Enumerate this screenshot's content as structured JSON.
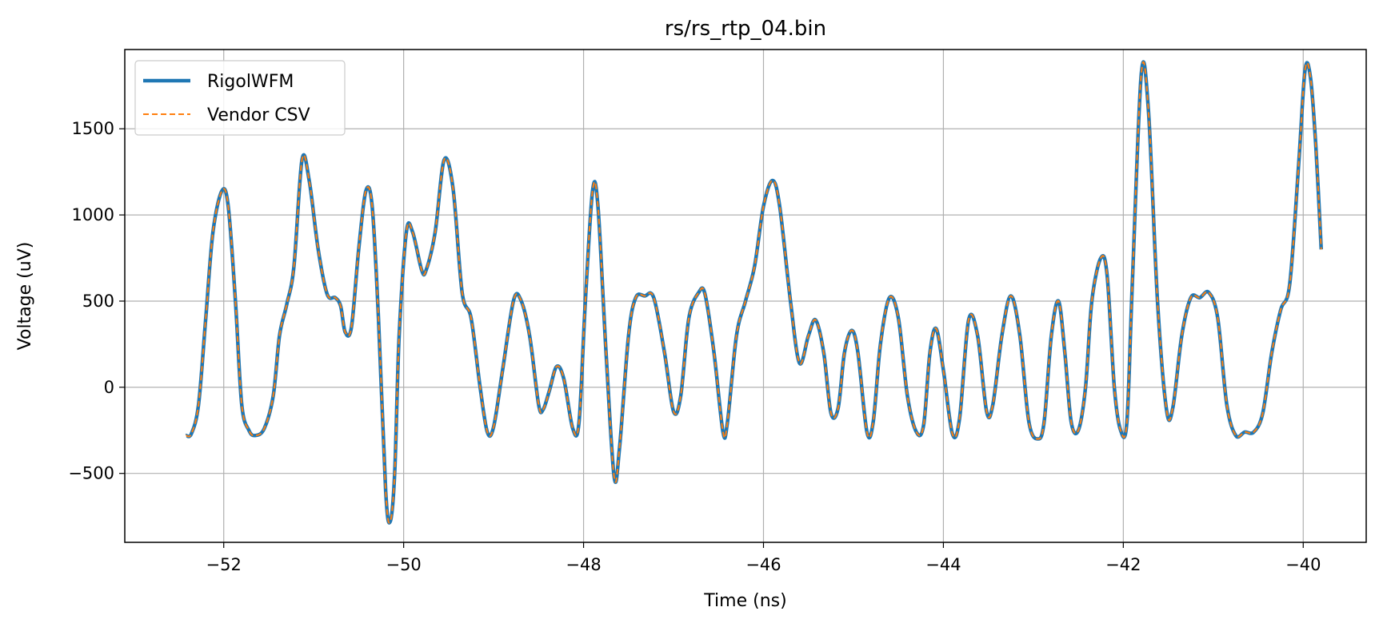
{
  "chart_data": {
    "type": "line",
    "title": "rs/rs_rtp_04.bin",
    "xlabel": "Time (ns)",
    "ylabel": "Voltage (uV)",
    "xlim": [
      -53.1,
      -39.3
    ],
    "ylim": [
      -900,
      1960
    ],
    "xticks": [
      -52,
      -50,
      -48,
      -46,
      -44,
      -42,
      -40
    ],
    "yticks": [
      -500,
      0,
      500,
      1000,
      1500
    ],
    "grid": true,
    "legend_position": "top-left",
    "series": [
      {
        "name": "RigolWFM",
        "color": "#1f77b4",
        "style": "solid"
      },
      {
        "name": "Vendor CSV",
        "color": "#ff7f0e",
        "style": "dashed"
      }
    ],
    "points": [
      [
        -52.42,
        -280
      ],
      [
        -52.36,
        -270
      ],
      [
        -52.28,
        -100
      ],
      [
        -52.2,
        400
      ],
      [
        -52.12,
        900
      ],
      [
        -52.02,
        1140
      ],
      [
        -51.95,
        1050
      ],
      [
        -51.87,
        500
      ],
      [
        -51.8,
        -100
      ],
      [
        -51.72,
        -250
      ],
      [
        -51.65,
        -280
      ],
      [
        -51.55,
        -240
      ],
      [
        -51.45,
        -50
      ],
      [
        -51.38,
        300
      ],
      [
        -51.3,
        480
      ],
      [
        -51.22,
        700
      ],
      [
        -51.13,
        1320
      ],
      [
        -51.05,
        1200
      ],
      [
        -50.95,
        800
      ],
      [
        -50.85,
        540
      ],
      [
        -50.76,
        520
      ],
      [
        -50.7,
        470
      ],
      [
        -50.65,
        320
      ],
      [
        -50.58,
        350
      ],
      [
        -50.5,
        800
      ],
      [
        -50.42,
        1140
      ],
      [
        -50.35,
        1050
      ],
      [
        -50.28,
        400
      ],
      [
        -50.2,
        -600
      ],
      [
        -50.15,
        -780
      ],
      [
        -50.1,
        -500
      ],
      [
        -50.05,
        300
      ],
      [
        -49.97,
        900
      ],
      [
        -49.9,
        900
      ],
      [
        -49.8,
        680
      ],
      [
        -49.75,
        680
      ],
      [
        -49.65,
        900
      ],
      [
        -49.55,
        1320
      ],
      [
        -49.45,
        1150
      ],
      [
        -49.35,
        550
      ],
      [
        -49.25,
        400
      ],
      [
        -49.15,
        0
      ],
      [
        -49.07,
        -260
      ],
      [
        -49.0,
        -230
      ],
      [
        -48.9,
        100
      ],
      [
        -48.78,
        500
      ],
      [
        -48.7,
        510
      ],
      [
        -48.6,
        300
      ],
      [
        -48.5,
        -100
      ],
      [
        -48.45,
        -130
      ],
      [
        -48.38,
        -20
      ],
      [
        -48.3,
        120
      ],
      [
        -48.22,
        50
      ],
      [
        -48.12,
        -240
      ],
      [
        -48.05,
        -200
      ],
      [
        -47.98,
        500
      ],
      [
        -47.9,
        1140
      ],
      [
        -47.84,
        1050
      ],
      [
        -47.75,
        200
      ],
      [
        -47.66,
        -520
      ],
      [
        -47.6,
        -350
      ],
      [
        -47.5,
        300
      ],
      [
        -47.42,
        520
      ],
      [
        -47.32,
        530
      ],
      [
        -47.22,
        520
      ],
      [
        -47.1,
        200
      ],
      [
        -47.0,
        -140
      ],
      [
        -46.92,
        -50
      ],
      [
        -46.83,
        400
      ],
      [
        -46.72,
        550
      ],
      [
        -46.65,
        540
      ],
      [
        -46.55,
        200
      ],
      [
        -46.45,
        -260
      ],
      [
        -46.4,
        -200
      ],
      [
        -46.3,
        300
      ],
      [
        -46.2,
        500
      ],
      [
        -46.1,
        700
      ],
      [
        -46.0,
        1050
      ],
      [
        -45.9,
        1200
      ],
      [
        -45.82,
        1050
      ],
      [
        -45.7,
        500
      ],
      [
        -45.6,
        140
      ],
      [
        -45.5,
        300
      ],
      [
        -45.42,
        390
      ],
      [
        -45.33,
        200
      ],
      [
        -45.25,
        -150
      ],
      [
        -45.17,
        -120
      ],
      [
        -45.1,
        200
      ],
      [
        -45.02,
        330
      ],
      [
        -44.95,
        200
      ],
      [
        -44.85,
        -260
      ],
      [
        -44.78,
        -200
      ],
      [
        -44.7,
        250
      ],
      [
        -44.6,
        520
      ],
      [
        -44.5,
        400
      ],
      [
        -44.4,
        -50
      ],
      [
        -44.3,
        -260
      ],
      [
        -44.22,
        -220
      ],
      [
        -44.15,
        200
      ],
      [
        -44.08,
        340
      ],
      [
        -44.0,
        100
      ],
      [
        -43.9,
        -270
      ],
      [
        -43.82,
        -180
      ],
      [
        -43.72,
        390
      ],
      [
        -43.62,
        300
      ],
      [
        -43.52,
        -140
      ],
      [
        -43.45,
        -100
      ],
      [
        -43.35,
        300
      ],
      [
        -43.25,
        530
      ],
      [
        -43.15,
        300
      ],
      [
        -43.05,
        -200
      ],
      [
        -42.95,
        -300
      ],
      [
        -42.88,
        -200
      ],
      [
        -42.8,
        300
      ],
      [
        -42.72,
        500
      ],
      [
        -42.65,
        200
      ],
      [
        -42.58,
        -200
      ],
      [
        -42.5,
        -250
      ],
      [
        -42.42,
        0
      ],
      [
        -42.35,
        500
      ],
      [
        -42.25,
        750
      ],
      [
        -42.18,
        650
      ],
      [
        -42.1,
        0
      ],
      [
        -42.03,
        -250
      ],
      [
        -41.96,
        -200
      ],
      [
        -41.9,
        600
      ],
      [
        -41.8,
        1820
      ],
      [
        -41.72,
        1600
      ],
      [
        -41.62,
        500
      ],
      [
        -41.52,
        -130
      ],
      [
        -41.45,
        -120
      ],
      [
        -41.35,
        300
      ],
      [
        -41.25,
        520
      ],
      [
        -41.15,
        520
      ],
      [
        -41.05,
        550
      ],
      [
        -40.95,
        400
      ],
      [
        -40.85,
        -100
      ],
      [
        -40.75,
        -280
      ],
      [
        -40.65,
        -260
      ],
      [
        -40.55,
        -260
      ],
      [
        -40.45,
        -150
      ],
      [
        -40.35,
        200
      ],
      [
        -40.25,
        450
      ],
      [
        -40.15,
        600
      ],
      [
        -40.05,
        1300
      ],
      [
        -39.98,
        1840
      ],
      [
        -39.92,
        1800
      ],
      [
        -39.86,
        1400
      ],
      [
        -39.8,
        800
      ]
    ]
  }
}
